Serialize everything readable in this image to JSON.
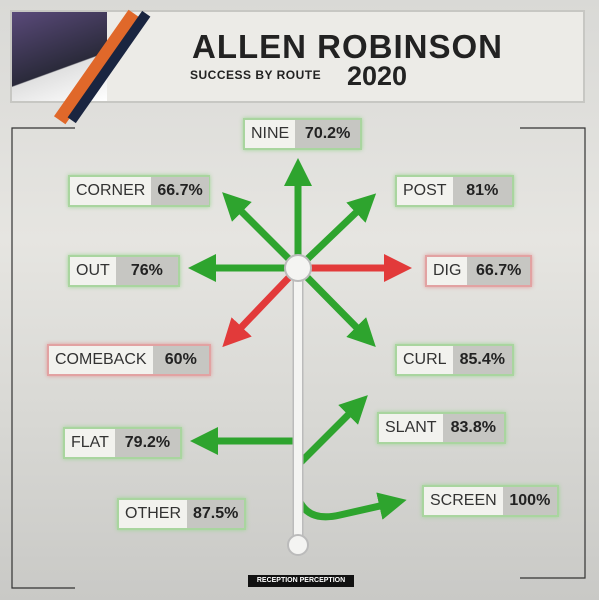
{
  "header": {
    "first_name": "ALLEN",
    "last_name": "ROBINSON",
    "subtitle": "SUCCESS BY ROUTE",
    "year": "2020"
  },
  "routes": [
    {
      "name": "NINE",
      "value": "70.2%"
    },
    {
      "name": "CORNER",
      "value": "66.7%"
    },
    {
      "name": "POST",
      "value": "81%"
    },
    {
      "name": "OUT",
      "value": "76%"
    },
    {
      "name": "DIG",
      "value": "66.7%"
    },
    {
      "name": "COMEBACK",
      "value": "60%"
    },
    {
      "name": "CURL",
      "value": "85.4%"
    },
    {
      "name": "SLANT",
      "value": "83.8%"
    },
    {
      "name": "FLAT",
      "value": "79.2%"
    },
    {
      "name": "OTHER",
      "value": "87.5%"
    },
    {
      "name": "SCREEN",
      "value": "100%"
    }
  ],
  "footer": {
    "brand": "RECEPTION PERCEPTION"
  }
}
